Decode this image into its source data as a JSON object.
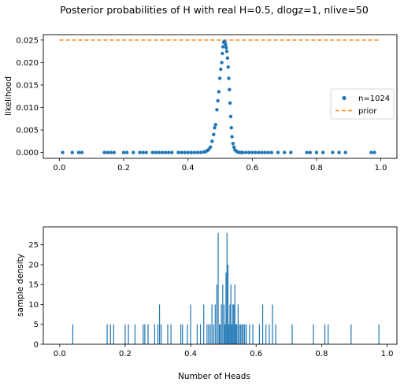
{
  "figure": {
    "title": "Posterior probabilities of H with real H=0.5, dlogz=1, nlive=50",
    "xlabel": "Number of Heads"
  },
  "colors": {
    "points": "#1f77b4",
    "prior": "#ff7f0e",
    "bars": "#1f77b4",
    "axis": "#000000",
    "background": "#ffffff"
  },
  "chart_data": [
    {
      "type": "scatter",
      "title": "",
      "xlabel": "",
      "ylabel": "likelihood",
      "xlim": [
        -0.05,
        1.05
      ],
      "ylim": [
        -0.0013,
        0.0262
      ],
      "xticks": [
        "0.0",
        "0.2",
        "0.4",
        "0.6",
        "0.8",
        "1.0"
      ],
      "yticks": [
        "0.000",
        "0.005",
        "0.010",
        "0.015",
        "0.020",
        "0.025"
      ],
      "grid": false,
      "legend_position": "center-right",
      "series": [
        {
          "name": "n=1024",
          "kind": "points",
          "x": [
            0.01,
            0.04,
            0.06,
            0.07,
            0.14,
            0.15,
            0.16,
            0.17,
            0.2,
            0.21,
            0.23,
            0.25,
            0.26,
            0.27,
            0.29,
            0.3,
            0.31,
            0.32,
            0.33,
            0.34,
            0.35,
            0.37,
            0.38,
            0.39,
            0.4,
            0.41,
            0.42,
            0.43,
            0.44,
            0.45,
            0.455,
            0.46,
            0.465,
            0.47,
            0.475,
            0.48,
            0.483,
            0.486,
            0.49,
            0.493,
            0.496,
            0.499,
            0.502,
            0.505,
            0.507,
            0.509,
            0.511,
            0.513,
            0.515,
            0.517,
            0.519,
            0.521,
            0.523,
            0.525,
            0.527,
            0.529,
            0.531,
            0.533,
            0.535,
            0.537,
            0.54,
            0.543,
            0.546,
            0.55,
            0.555,
            0.56,
            0.565,
            0.57,
            0.58,
            0.59,
            0.6,
            0.61,
            0.62,
            0.63,
            0.64,
            0.65,
            0.66,
            0.68,
            0.7,
            0.72,
            0.77,
            0.78,
            0.8,
            0.82,
            0.85,
            0.87,
            0.89,
            0.97,
            0.98
          ],
          "y": [
            0,
            0,
            0,
            0,
            0,
            0,
            0,
            0,
            0,
            0,
            0,
            0,
            0,
            0,
            0,
            0,
            0,
            0,
            0,
            0,
            0,
            0,
            0,
            0,
            0,
            0,
            0,
            1e-05,
            3e-05,
            0.0001,
            0.0002,
            0.0004,
            0.0007,
            0.0012,
            0.0025,
            0.004,
            0.0055,
            0.0062,
            0.0095,
            0.0115,
            0.0135,
            0.0165,
            0.0185,
            0.02,
            0.022,
            0.0235,
            0.0245,
            0.0247,
            0.0245,
            0.024,
            0.0233,
            0.0225,
            0.021,
            0.019,
            0.0165,
            0.014,
            0.011,
            0.008,
            0.0055,
            0.0035,
            0.002,
            0.0012,
            0.0006,
            0.0003,
            0.0001,
            3e-05,
            0,
            0,
            0,
            0,
            0,
            0,
            0,
            0,
            0,
            0,
            0,
            0,
            0,
            0,
            0,
            0,
            0,
            0,
            0,
            0,
            0,
            0,
            0
          ]
        },
        {
          "name": "prior",
          "kind": "dashed-line",
          "x": [
            0.0,
            1.0
          ],
          "y": [
            0.025,
            0.025
          ]
        }
      ]
    },
    {
      "type": "bar",
      "title": "",
      "xlabel": "Number of Heads",
      "ylabel": "sample density",
      "xlim": [
        -0.05,
        1.03
      ],
      "ylim": [
        0,
        29.5
      ],
      "xticks": [
        "0.0",
        "0.2",
        "0.4",
        "0.6",
        "0.8",
        "1.0"
      ],
      "yticks": [
        "0",
        "5",
        "10",
        "15",
        "20",
        "25"
      ],
      "grid": false,
      "x": [
        0.04,
        0.145,
        0.155,
        0.165,
        0.2,
        0.21,
        0.23,
        0.255,
        0.26,
        0.27,
        0.29,
        0.3,
        0.305,
        0.31,
        0.33,
        0.34,
        0.37,
        0.375,
        0.39,
        0.4,
        0.42,
        0.43,
        0.44,
        0.45,
        0.455,
        0.46,
        0.465,
        0.47,
        0.475,
        0.48,
        0.484,
        0.488,
        0.49,
        0.494,
        0.498,
        0.502,
        0.505,
        0.508,
        0.511,
        0.514,
        0.517,
        0.52,
        0.523,
        0.526,
        0.529,
        0.532,
        0.535,
        0.538,
        0.541,
        0.545,
        0.549,
        0.553,
        0.557,
        0.561,
        0.565,
        0.57,
        0.58,
        0.59,
        0.61,
        0.62,
        0.63,
        0.64,
        0.65,
        0.66,
        0.71,
        0.775,
        0.81,
        0.82,
        0.89,
        0.975
      ],
      "values": [
        5,
        5,
        5,
        5,
        5,
        5,
        5,
        5,
        5,
        5,
        5,
        5,
        10,
        5,
        5,
        5,
        5,
        5,
        5,
        10,
        5,
        5,
        10,
        5,
        5,
        5,
        10,
        5,
        10,
        15,
        28,
        5,
        5,
        10,
        15,
        10,
        5,
        18,
        28,
        20,
        5,
        10,
        15,
        5,
        10,
        10,
        15,
        5,
        5,
        10,
        5,
        5,
        5,
        5,
        5,
        5,
        5,
        5,
        5,
        10,
        5,
        5,
        10,
        5,
        5,
        5,
        5,
        5,
        5,
        5
      ]
    }
  ]
}
